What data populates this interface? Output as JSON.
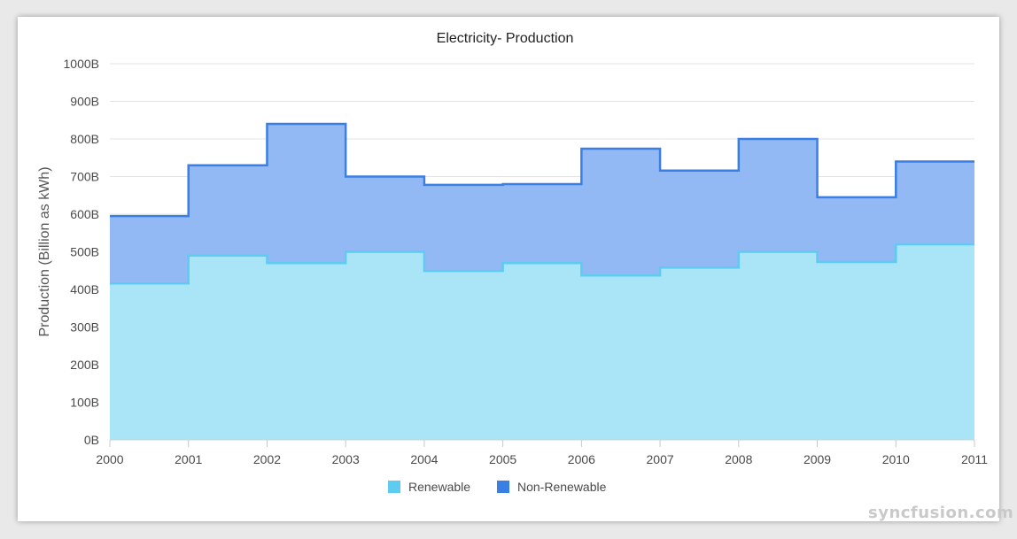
{
  "watermark": "syncfusion.com",
  "chart_data": {
    "type": "area",
    "subtype": "step-area",
    "title": "Electricity- Production",
    "xlabel": "",
    "ylabel": "Production (Billion as kWh)",
    "x": [
      "2000",
      "2001",
      "2002",
      "2003",
      "2004",
      "2005",
      "2006",
      "2007",
      "2008",
      "2009",
      "2010",
      "2011"
    ],
    "ylim": [
      0,
      1000
    ],
    "y_ticks": [
      "0B",
      "100B",
      "200B",
      "300B",
      "400B",
      "500B",
      "600B",
      "700B",
      "800B",
      "900B",
      "1000B"
    ],
    "grid": true,
    "legend_position": "bottom",
    "series": [
      {
        "name": "Renewable",
        "values": [
          416,
          490,
          470,
          500,
          449,
          470,
          437,
          458,
          500,
          473,
          520,
          520
        ],
        "color": "#5ecbf0",
        "fill": "#a9e4f7"
      },
      {
        "name": "Non-Renewable",
        "values": [
          595,
          730,
          840,
          700,
          678,
          680,
          774,
          716,
          800,
          645,
          740,
          740
        ],
        "color": "#3a7fe4",
        "fill": "#92b9f3"
      }
    ]
  }
}
